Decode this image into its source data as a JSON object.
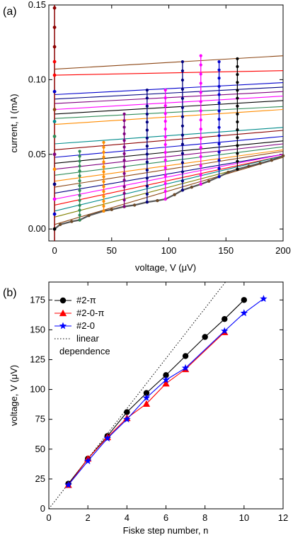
{
  "chart_data": [
    {
      "type": "line",
      "panel_label": "(a)",
      "xlabel": "voltage, V (μV)",
      "ylabel": "current, I (mA)",
      "xlim": [
        -5,
        200
      ],
      "ylim": [
        -0.008,
        0.15
      ],
      "xticks": [
        0,
        50,
        100,
        150,
        200
      ],
      "xtick_labels": [
        "0",
        "50",
        "100",
        "150",
        "200"
      ],
      "yticks": [
        0.0,
        0.05,
        0.1,
        0.15
      ],
      "ytick_labels": [
        "0.00",
        "0.05",
        "0.10",
        "0.15"
      ],
      "grid": false,
      "fiske_steps": [
        {
          "v": 22,
          "i_min": 0.006,
          "i_max": 0.052,
          "color": "#2e8b57"
        },
        {
          "v": 43,
          "i_min": 0.012,
          "i_max": 0.058,
          "color": "#ff8c00"
        },
        {
          "v": 61,
          "i_min": 0.015,
          "i_max": 0.077,
          "color": "#800080"
        },
        {
          "v": 81,
          "i_min": 0.018,
          "i_max": 0.093,
          "color": "#000080"
        },
        {
          "v": 97,
          "i_min": 0.02,
          "i_max": 0.093,
          "color": "#ff00ff"
        },
        {
          "v": 112,
          "i_min": 0.026,
          "i_max": 0.112,
          "color": "#000080"
        },
        {
          "v": 128,
          "i_min": 0.03,
          "i_max": 0.116,
          "color": "#ff00ff"
        },
        {
          "v": 144,
          "i_min": 0.035,
          "i_max": 0.112,
          "color": "#0000cd"
        },
        {
          "v": 160,
          "i_min": 0.04,
          "i_max": 0.114,
          "color": "#000000"
        }
      ],
      "zero_voltage_points": [
        {
          "i": 0.148,
          "color": "#8b0000"
        },
        {
          "i": 0.135,
          "color": "#8b0000"
        },
        {
          "i": 0.122,
          "color": "#8b0000"
        },
        {
          "i": 0.112,
          "color": "#ff0000"
        },
        {
          "i": 0.103,
          "color": "#ff0000"
        },
        {
          "i": 0.092,
          "color": "#0000cd"
        },
        {
          "i": 0.08,
          "color": "#8b4513"
        },
        {
          "i": 0.072,
          "color": "#008b8b"
        },
        {
          "i": 0.062,
          "color": "#2e8b57"
        },
        {
          "i": 0.05,
          "color": "#800080"
        },
        {
          "i": 0.04,
          "color": "#ff8c00"
        },
        {
          "i": 0.03,
          "color": "#000080"
        },
        {
          "i": 0.02,
          "color": "#ff00ff"
        },
        {
          "i": 0.01,
          "color": "#0000cd"
        },
        {
          "i": 0.0,
          "color": "#000000"
        }
      ],
      "series": [
        {
          "color": "#8b4513",
          "x": [
            0,
            200
          ],
          "y": [
            0.107,
            0.116
          ]
        },
        {
          "color": "#ff0000",
          "x": [
            0,
            200
          ],
          "y": [
            0.103,
            0.106
          ]
        },
        {
          "color": "#0000cd",
          "x": [
            0,
            200
          ],
          "y": [
            0.09,
            0.098
          ]
        },
        {
          "color": "#000080",
          "x": [
            0,
            200
          ],
          "y": [
            0.087,
            0.095
          ]
        },
        {
          "color": "#800080",
          "x": [
            0,
            200
          ],
          "y": [
            0.084,
            0.092
          ]
        },
        {
          "color": "#ff00ff",
          "x": [
            0,
            200
          ],
          "y": [
            0.08,
            0.089
          ]
        },
        {
          "color": "#000000",
          "x": [
            0,
            200
          ],
          "y": [
            0.077,
            0.086
          ]
        },
        {
          "color": "#2e8b57",
          "x": [
            0,
            200
          ],
          "y": [
            0.074,
            0.082
          ]
        },
        {
          "color": "#ff8c00",
          "x": [
            0,
            200
          ],
          "y": [
            0.07,
            0.08
          ]
        },
        {
          "color": "#008b8b",
          "x": [
            0,
            200
          ],
          "y": [
            0.057,
            0.068
          ]
        },
        {
          "color": "#8b0000",
          "x": [
            0,
            200
          ],
          "y": [
            0.053,
            0.066
          ]
        },
        {
          "color": "#0000cd",
          "x": [
            0,
            200
          ],
          "y": [
            0.048,
            0.062
          ]
        },
        {
          "color": "#000000",
          "x": [
            0,
            200
          ],
          "y": [
            0.044,
            0.059
          ]
        },
        {
          "color": "#800080",
          "x": [
            0,
            200
          ],
          "y": [
            0.04,
            0.057
          ]
        },
        {
          "color": "#2e8b57",
          "x": [
            0,
            200
          ],
          "y": [
            0.036,
            0.055
          ]
        },
        {
          "color": "#ff8c00",
          "x": [
            0,
            200
          ],
          "y": [
            0.032,
            0.053
          ]
        },
        {
          "color": "#8b4513",
          "x": [
            0,
            200
          ],
          "y": [
            0.028,
            0.052
          ]
        },
        {
          "color": "#000080",
          "x": [
            0,
            200
          ],
          "y": [
            0.024,
            0.05
          ]
        },
        {
          "color": "#ff00ff",
          "x": [
            0,
            200
          ],
          "y": [
            0.02,
            0.05
          ]
        },
        {
          "color": "#ff0000",
          "x": [
            0,
            200
          ],
          "y": [
            0.016,
            0.049
          ]
        },
        {
          "color": "#008b8b",
          "x": [
            0,
            200
          ],
          "y": [
            0.012,
            0.049
          ]
        },
        {
          "color": "#808000",
          "x": [
            0,
            200
          ],
          "y": [
            0.008,
            0.048
          ]
        },
        {
          "color": "#8b4513",
          "x": [
            0,
            200
          ],
          "y": [
            0.003,
            0.048
          ]
        }
      ],
      "envelope_curve": {
        "x": [
          0,
          5,
          15,
          22,
          30,
          43,
          50,
          61,
          70,
          81,
          90,
          97,
          105,
          112,
          120,
          128,
          135,
          144,
          152,
          160,
          170,
          180,
          190,
          200
        ],
        "y": [
          0.0,
          0.003,
          0.005,
          0.006,
          0.009,
          0.012,
          0.013,
          0.015,
          0.016,
          0.018,
          0.019,
          0.02,
          0.023,
          0.026,
          0.028,
          0.03,
          0.032,
          0.035,
          0.038,
          0.04,
          0.042,
          0.044,
          0.046,
          0.049
        ]
      }
    },
    {
      "type": "line",
      "panel_label": "(b)",
      "xlabel": "Fiske step number, n",
      "ylabel": "voltage, V (μV)",
      "xlim": [
        0,
        12
      ],
      "ylim": [
        0,
        190
      ],
      "xticks": [
        0,
        2,
        4,
        6,
        8,
        10,
        12
      ],
      "xtick_labels": [
        "0",
        "2",
        "4",
        "6",
        "8",
        "10",
        "12"
      ],
      "yticks": [
        0,
        25,
        50,
        75,
        100,
        125,
        150,
        175
      ],
      "ytick_labels": [
        "0",
        "25",
        "50",
        "75",
        "100",
        "125",
        "150",
        "175"
      ],
      "grid": false,
      "legend_position": "top-left",
      "series": [
        {
          "name": "#2-π",
          "color": "#000000",
          "marker": "circle",
          "x": [
            1,
            2,
            3,
            4,
            5,
            6,
            7,
            8,
            9,
            10
          ],
          "y": [
            21,
            42,
            61,
            81,
            97,
            112,
            128,
            144,
            159,
            175
          ]
        },
        {
          "name": "#2-0-π",
          "color": "#ff0000",
          "marker": "triangle",
          "x": [
            1,
            2,
            3,
            4,
            5,
            6,
            7,
            9
          ],
          "y": [
            20,
            42,
            60,
            76,
            88,
            105,
            117,
            148
          ]
        },
        {
          "name": "#2-0",
          "color": "#0000ff",
          "marker": "star",
          "x": [
            1,
            2,
            3,
            4,
            5,
            6,
            7,
            9,
            10,
            11
          ],
          "y": [
            20,
            40,
            59,
            75,
            93,
            108,
            118,
            149,
            164,
            176
          ]
        }
      ],
      "reference_line": {
        "name_lines": [
          "linear",
          "dependence"
        ],
        "x": [
          0,
          12
        ],
        "y": [
          0,
          252
        ]
      }
    }
  ]
}
